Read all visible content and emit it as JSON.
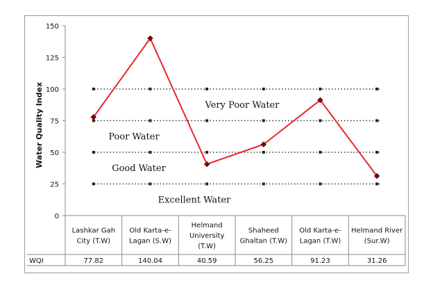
{
  "chart_data": {
    "type": "line",
    "title": "",
    "xlabel": "",
    "ylabel": "Water Quality Index",
    "ylim": [
      0,
      150
    ],
    "yticks": [
      0,
      25,
      50,
      75,
      100,
      125,
      150
    ],
    "categories": [
      "Lashkar Gah City (T.W)",
      "Old Karta-e-Lagan (S.W)",
      "Helmand University (T.W)",
      "Shaheed Ghaltan (T.W)",
      "Old Karta-e-Lagan (T.W)",
      "Helmand River (Sur.W)"
    ],
    "category_lines": [
      [
        "Lashkar Gah",
        "City (T.W)"
      ],
      [
        "Old Karta-e-",
        "Lagan (S.W)"
      ],
      [
        "Helmand",
        "University",
        "(T.W)"
      ],
      [
        "Shaheed",
        "Ghaltan (T.W)"
      ],
      [
        "Old Karta-e-",
        "Lagan (T.W)"
      ],
      [
        "Helmand River",
        "(Sur.W)"
      ]
    ],
    "series": [
      {
        "name": "WQI",
        "values": [
          77.82,
          140.04,
          40.59,
          56.25,
          91.23,
          31.26
        ],
        "value_labels": [
          "77.82",
          "140.04",
          "40.59",
          "56.25",
          "91.23",
          "31.26"
        ],
        "color": "#e8262a"
      }
    ],
    "threshold_lines": [
      25,
      50,
      75,
      100
    ],
    "zone_labels": [
      {
        "text": "Very Poor Water",
        "y": 87.5
      },
      {
        "text": "Poor Water",
        "y": 62.5
      },
      {
        "text": "Good Water",
        "y": 37.5
      },
      {
        "text": "Excellent Water",
        "y": 12.5
      }
    ],
    "grid": false,
    "legend": "none"
  }
}
